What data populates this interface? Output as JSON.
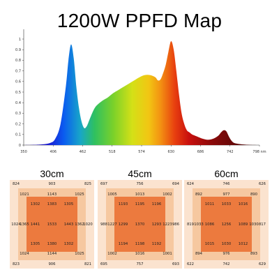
{
  "title": "1200W PPFD Map",
  "chart_data": [
    {
      "type": "area",
      "title": "",
      "xlabel": "",
      "ylabel": "",
      "x_ticks": [
        "350",
        "406",
        "462",
        "518",
        "574",
        "630",
        "686",
        "742",
        "798 nm"
      ],
      "y_ticks": [
        "0",
        "0.1",
        "0.2",
        "0.3",
        "0.4",
        "0.5",
        "0.6",
        "0.7",
        "0.8",
        "0.9",
        "1"
      ],
      "xlim": [
        350,
        798
      ],
      "ylim": [
        0,
        1
      ],
      "x": [
        350,
        380,
        400,
        410,
        420,
        430,
        435,
        440,
        445,
        450,
        455,
        460,
        465,
        470,
        475,
        480,
        485,
        490,
        500,
        510,
        520,
        530,
        540,
        550,
        560,
        570,
        580,
        590,
        600,
        605,
        610,
        615,
        620,
        625,
        630,
        635,
        640,
        645,
        650,
        655,
        660,
        665,
        670,
        675,
        680,
        690,
        700,
        710,
        720,
        725,
        730,
        735,
        740,
        745,
        750,
        760,
        770,
        780,
        798
      ],
      "y": [
        0,
        0.005,
        0.02,
        0.06,
        0.2,
        0.55,
        0.8,
        0.95,
        0.82,
        0.55,
        0.35,
        0.22,
        0.16,
        0.18,
        0.24,
        0.3,
        0.35,
        0.38,
        0.42,
        0.45,
        0.49,
        0.52,
        0.55,
        0.58,
        0.61,
        0.64,
        0.66,
        0.66,
        0.64,
        0.61,
        0.62,
        0.68,
        0.76,
        0.88,
        0.98,
        0.9,
        0.7,
        0.48,
        0.3,
        0.2,
        0.14,
        0.12,
        0.1,
        0.09,
        0.08,
        0.06,
        0.05,
        0.06,
        0.09,
        0.12,
        0.14,
        0.13,
        0.08,
        0.04,
        0.02,
        0.01,
        0.005,
        0.002,
        0
      ]
    },
    {
      "type": "heatmap",
      "title": "30cm",
      "rows": [
        [
          "824",
          "",
          "903",
          "",
          "825"
        ],
        [
          "1021",
          "",
          "1143",
          "",
          "1025"
        ],
        [
          "",
          "1302",
          "1383",
          "1305",
          ""
        ],
        [
          "1024",
          "1365",
          "1441",
          "1533",
          "1443",
          "1362",
          "1020"
        ],
        [
          "",
          "1305",
          "1380",
          "1302",
          ""
        ],
        [
          "1024",
          "",
          "1144",
          "",
          "1025"
        ],
        [
          "823",
          "",
          "906",
          "",
          "821"
        ]
      ]
    },
    {
      "type": "heatmap",
      "title": "45cm",
      "rows": [
        [
          "697",
          "",
          "756",
          "",
          "694"
        ],
        [
          "1005",
          "",
          "1013",
          "",
          "1002"
        ],
        [
          "",
          "1193",
          "1195",
          "1196",
          ""
        ],
        [
          "988",
          "1227",
          "1299",
          "1370",
          "1293",
          "1223",
          "986"
        ],
        [
          "",
          "1194",
          "1198",
          "1192",
          ""
        ],
        [
          "1002",
          "",
          "1016",
          "",
          "1001"
        ],
        [
          "695",
          "",
          "757",
          "",
          "693"
        ]
      ]
    },
    {
      "type": "heatmap",
      "title": "60cm",
      "rows": [
        [
          "624",
          "",
          "746",
          "",
          "626"
        ],
        [
          "892",
          "",
          "977",
          "",
          "890"
        ],
        [
          "",
          "1011",
          "1033",
          "1016",
          ""
        ],
        [
          "819",
          "1033",
          "1086",
          "1256",
          "1089",
          "1030",
          "817"
        ],
        [
          "",
          "1015",
          "1030",
          "1012",
          ""
        ],
        [
          "894",
          "",
          "976",
          "",
          "893"
        ],
        [
          "622",
          "",
          "742",
          "",
          "629"
        ]
      ]
    }
  ]
}
